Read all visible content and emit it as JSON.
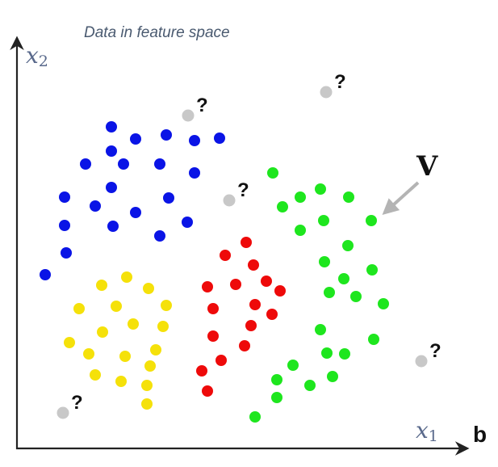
{
  "title": "Data in feature space",
  "x_axis_label": {
    "base": "x",
    "sub": "1"
  },
  "y_axis_label": {
    "base": "x",
    "sub": "2"
  },
  "panel_letter": "b",
  "vector_label": "V",
  "unknown_marker": "?",
  "colors": {
    "blue": "#0a14e6",
    "yellow": "#f5e10a",
    "red": "#ee0a0a",
    "green": "#1ee61e",
    "unknown": "#c8c8c8",
    "axis": "#222222",
    "arrow": "#b4b4b4"
  },
  "chart_data": {
    "type": "scatter",
    "title": "Data in feature space",
    "xlabel": "x1",
    "ylabel": "x2",
    "series": [
      {
        "color": "blue",
        "points": [
          [
            138,
            157
          ],
          [
            168,
            172
          ],
          [
            206,
            167
          ],
          [
            241,
            174
          ],
          [
            272,
            171
          ],
          [
            138,
            187
          ],
          [
            153,
            203
          ],
          [
            106,
            203
          ],
          [
            198,
            203
          ],
          [
            241,
            214
          ],
          [
            138,
            232
          ],
          [
            80,
            244
          ],
          [
            118,
            255
          ],
          [
            168,
            263
          ],
          [
            209,
            245
          ],
          [
            80,
            279
          ],
          [
            140,
            280
          ],
          [
            198,
            292
          ],
          [
            232,
            275
          ],
          [
            82,
            313
          ],
          [
            56,
            340
          ]
        ]
      },
      {
        "color": "yellow",
        "points": [
          [
            126,
            353
          ],
          [
            157,
            343
          ],
          [
            184,
            357
          ],
          [
            98,
            382
          ],
          [
            144,
            379
          ],
          [
            206,
            378
          ],
          [
            127,
            411
          ],
          [
            165,
            401
          ],
          [
            202,
            404
          ],
          [
            86,
            424
          ],
          [
            110,
            438
          ],
          [
            155,
            441
          ],
          [
            193,
            433
          ],
          [
            118,
            464
          ],
          [
            150,
            472
          ],
          [
            186,
            453
          ],
          [
            182,
            477
          ],
          [
            182,
            500
          ]
        ]
      },
      {
        "color": "red",
        "points": [
          [
            305,
            300
          ],
          [
            279,
            316
          ],
          [
            314,
            328
          ],
          [
            257,
            355
          ],
          [
            292,
            352
          ],
          [
            330,
            348
          ],
          [
            347,
            360
          ],
          [
            264,
            382
          ],
          [
            316,
            377
          ],
          [
            337,
            389
          ],
          [
            264,
            416
          ],
          [
            311,
            403
          ],
          [
            303,
            428
          ],
          [
            274,
            446
          ],
          [
            250,
            459
          ],
          [
            257,
            484
          ]
        ]
      },
      {
        "color": "green",
        "points": [
          [
            338,
            214
          ],
          [
            397,
            234
          ],
          [
            432,
            244
          ],
          [
            350,
            256
          ],
          [
            372,
            244
          ],
          [
            401,
            273
          ],
          [
            460,
            273
          ],
          [
            372,
            285
          ],
          [
            431,
            304
          ],
          [
            402,
            324
          ],
          [
            461,
            334
          ],
          [
            426,
            345
          ],
          [
            408,
            362
          ],
          [
            441,
            367
          ],
          [
            475,
            376
          ],
          [
            397,
            408
          ],
          [
            463,
            420
          ],
          [
            405,
            437
          ],
          [
            427,
            438
          ],
          [
            363,
            452
          ],
          [
            343,
            470
          ],
          [
            412,
            466
          ],
          [
            384,
            477
          ],
          [
            343,
            492
          ],
          [
            316,
            516
          ]
        ]
      }
    ],
    "unknown_points": [
      [
        233,
        143
      ],
      [
        404,
        114
      ],
      [
        284,
        248
      ],
      [
        522,
        447
      ],
      [
        78,
        511
      ]
    ],
    "arrow": {
      "from": [
        518,
        226
      ],
      "to": [
        478,
        262
      ]
    }
  }
}
